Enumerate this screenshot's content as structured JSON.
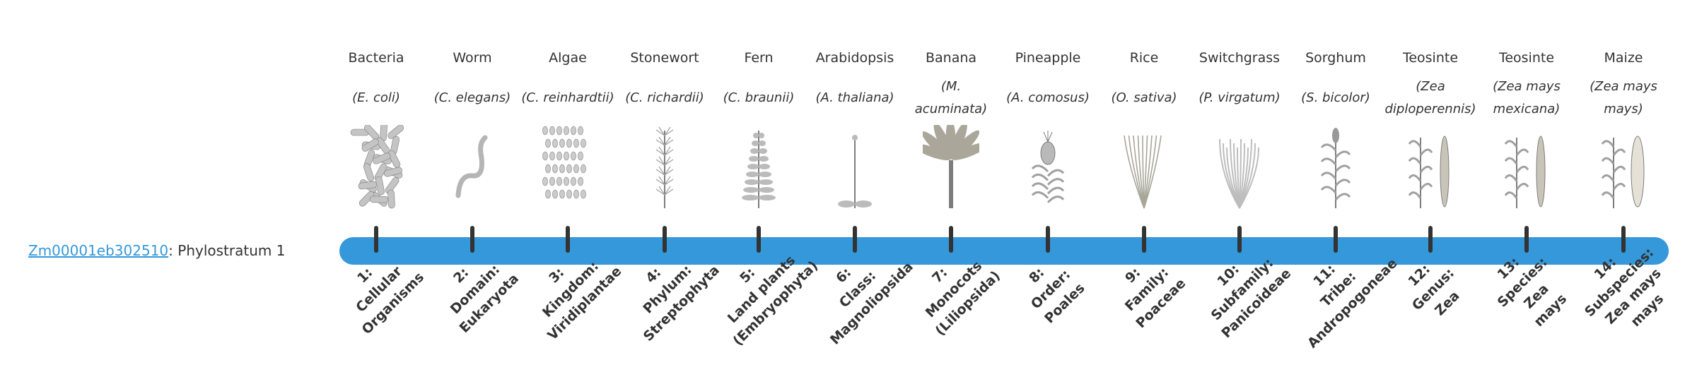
{
  "gene": {
    "id": "Zm00001eb302510",
    "suffix": ": Phylostratum 1"
  },
  "colors": {
    "bar": "#3498db",
    "tick": "#333333",
    "link": "#3498db",
    "illustration": "#9a9a9a"
  },
  "stages": [
    {
      "common": "Bacteria",
      "scientific": "(E. coli)",
      "illustration": "bacteria",
      "rank_lines": [
        "1:",
        "Cellular",
        "Organisms"
      ]
    },
    {
      "common": "Worm",
      "scientific": "(C. elegans)",
      "illustration": "worm",
      "rank_lines": [
        "2:",
        "Domain:",
        "Eukaryota"
      ]
    },
    {
      "common": "Algae",
      "scientific": "(C. reinhardtii)",
      "illustration": "algae",
      "rank_lines": [
        "3:",
        "Kingdom:",
        "Viridiplantae"
      ]
    },
    {
      "common": "Stonewort",
      "scientific": "(C. richardii)",
      "illustration": "stonewort",
      "rank_lines": [
        "4:",
        "Phylum:",
        "Streptophyta"
      ]
    },
    {
      "common": "Fern",
      "scientific": "(C. braunii)",
      "illustration": "fern",
      "rank_lines": [
        "5:",
        "Land plants",
        "(Embryophyta)"
      ]
    },
    {
      "common": "Arabidopsis",
      "scientific": "(A. thaliana)",
      "illustration": "arabidopsis",
      "rank_lines": [
        "6:",
        "Class:",
        "Magnoliopsida"
      ]
    },
    {
      "common": "Banana",
      "scientific": "(M. acuminata)",
      "illustration": "banana",
      "rank_lines": [
        "7:",
        "Monocots",
        "(Liliopsida)"
      ]
    },
    {
      "common": "Pineapple",
      "scientific": "(A. comosus)",
      "illustration": "pineapple",
      "rank_lines": [
        "8:",
        "Order:",
        "Poales"
      ]
    },
    {
      "common": "Rice",
      "scientific": "(O. sativa)",
      "illustration": "rice",
      "rank_lines": [
        "9:",
        "Family:",
        "Poaceae"
      ]
    },
    {
      "common": "Switchgrass",
      "scientific": "(P. virgatum)",
      "illustration": "switchgrass",
      "rank_lines": [
        "10:",
        "Subfamily:",
        "Panicoideae"
      ]
    },
    {
      "common": "Sorghum",
      "scientific": "(S. bicolor)",
      "illustration": "sorghum",
      "rank_lines": [
        "11:",
        "Tribe:",
        "Andropogoneae"
      ]
    },
    {
      "common": "Teosinte",
      "scientific": "(Zea diploperennis)",
      "illustration": "teosinte",
      "rank_lines": [
        "12:",
        "Genus:",
        "Zea"
      ]
    },
    {
      "common": "Teosinte",
      "scientific": "(Zea mays mexicana)",
      "illustration": "teosinte-mexicana",
      "rank_lines": [
        "13:",
        "Species:",
        "Zea",
        "mays"
      ]
    },
    {
      "common": "Maize",
      "scientific": "(Zea mays mays)",
      "illustration": "maize",
      "rank_lines": [
        "14:",
        "Subspecies:",
        "Zea mays",
        "mays"
      ]
    }
  ]
}
